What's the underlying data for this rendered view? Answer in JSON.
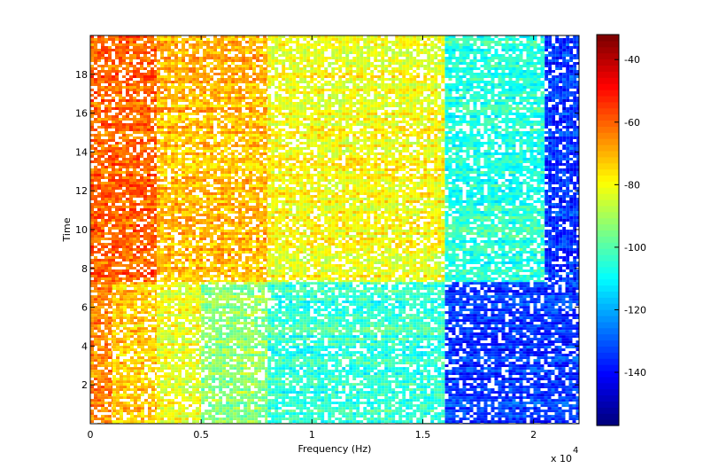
{
  "chart_data": {
    "type": "heatmap",
    "title": "",
    "xlabel": "Frequency (Hz)",
    "ylabel": "Time",
    "x_exponent_label": "x 10",
    "x_exponent_power": "4",
    "xlim": [
      0,
      22050
    ],
    "ylim": [
      0,
      20
    ],
    "x_ticks": [
      {
        "value": 0,
        "label": "0"
      },
      {
        "value": 5000,
        "label": "0.5"
      },
      {
        "value": 10000,
        "label": "1"
      },
      {
        "value": 15000,
        "label": "1.5"
      },
      {
        "value": 20000,
        "label": "2"
      }
    ],
    "y_ticks": [
      {
        "value": 2,
        "label": "2"
      },
      {
        "value": 4,
        "label": "4"
      },
      {
        "value": 6,
        "label": "6"
      },
      {
        "value": 8,
        "label": "8"
      },
      {
        "value": 10,
        "label": "10"
      },
      {
        "value": 12,
        "label": "12"
      },
      {
        "value": 14,
        "label": "14"
      },
      {
        "value": 16,
        "label": "16"
      },
      {
        "value": 18,
        "label": "18"
      }
    ],
    "colorbar": {
      "colormap": "jet",
      "range": [
        -157,
        -32
      ],
      "ticks": [
        {
          "value": -40,
          "label": "-40"
        },
        {
          "value": -60,
          "label": "-60"
        },
        {
          "value": -80,
          "label": "-80"
        },
        {
          "value": -100,
          "label": "-100"
        },
        {
          "value": -120,
          "label": "-120"
        },
        {
          "value": -140,
          "label": "-140"
        }
      ]
    },
    "regions": [
      {
        "time": [
          0,
          7.3
        ],
        "freq": [
          0,
          1000
        ],
        "level": -65
      },
      {
        "time": [
          0,
          7.3
        ],
        "freq": [
          1000,
          3000
        ],
        "level": -72
      },
      {
        "time": [
          0,
          7.3
        ],
        "freq": [
          3000,
          5000
        ],
        "level": -82
      },
      {
        "time": [
          0,
          7.3
        ],
        "freq": [
          5000,
          8000
        ],
        "level": -92
      },
      {
        "time": [
          0,
          7.3
        ],
        "freq": [
          8000,
          16000
        ],
        "level": -104
      },
      {
        "time": [
          0,
          7.3
        ],
        "freq": [
          16000,
          22050
        ],
        "level": -135
      },
      {
        "time": [
          7.3,
          20
        ],
        "freq": [
          0,
          3000
        ],
        "level": -60
      },
      {
        "time": [
          7.3,
          20
        ],
        "freq": [
          3000,
          8000
        ],
        "level": -70
      },
      {
        "time": [
          7.3,
          20
        ],
        "freq": [
          8000,
          16000
        ],
        "level": -80
      },
      {
        "time": [
          7.3,
          20
        ],
        "freq": [
          16000,
          20500
        ],
        "level": -105
      },
      {
        "time": [
          7.3,
          20
        ],
        "freq": [
          20500,
          22050
        ],
        "level": -135
      }
    ],
    "grid": false,
    "legend": "none"
  }
}
